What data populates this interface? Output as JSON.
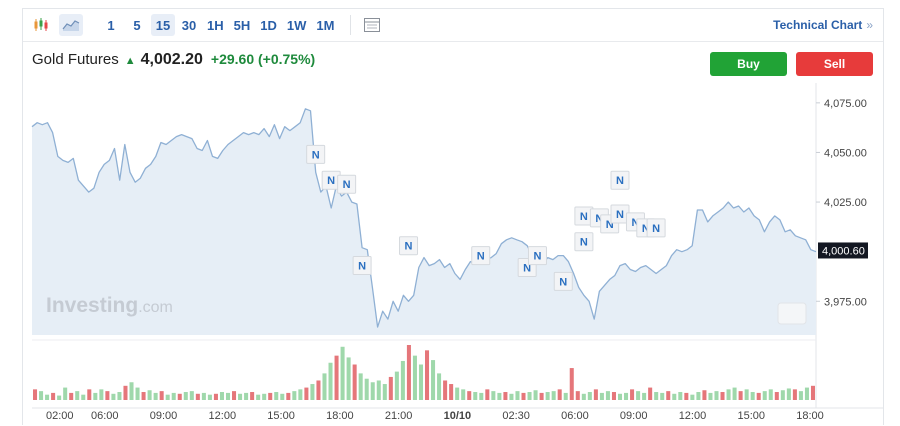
{
  "toolbar": {
    "icons": [
      {
        "name": "candlestick-chart-icon",
        "active": false
      },
      {
        "name": "area-chart-icon",
        "active": true
      }
    ],
    "timeframes": [
      "1",
      "5",
      "15",
      "30",
      "1H",
      "5H",
      "1D",
      "1W",
      "1M"
    ],
    "active_timeframe": "15",
    "table_icon": "table-icon",
    "technical_chart_label": "Technical Chart",
    "technical_chart_chevron": "»"
  },
  "instrument": {
    "name": "Gold Futures",
    "direction_icon": "up-arrow-icon",
    "price": "4,002.20",
    "change": "+29.60",
    "change_pct": "(+0.75%)",
    "up_color": "#1e8a3c"
  },
  "actions": {
    "buy_label": "Buy",
    "sell_label": "Sell",
    "buy_color": "#21a336",
    "sell_color": "#e73b3b"
  },
  "watermark": {
    "brand": "Investing",
    "suffix": ".com"
  },
  "chart_data": {
    "type": "area",
    "ylim": [
      3958,
      4085
    ],
    "y_ticks": [
      {
        "value": 4075,
        "label": "4,075.00"
      },
      {
        "value": 4050,
        "label": "4,050.00"
      },
      {
        "value": 4025,
        "label": "4,025.00"
      },
      {
        "value": 3975,
        "label": "3,975.00"
      }
    ],
    "last_price_label": "4,000.60",
    "last_price": 4000.6,
    "x_ticks": [
      "02:00",
      "06:00",
      "09:00",
      "12:00",
      "15:00",
      "18:00",
      "21:00",
      "10/10",
      "02:30",
      "06:00",
      "09:00",
      "12:00",
      "15:00",
      "18:00"
    ],
    "x_tick_bold_index": 7,
    "line_color": "#8fb0d4",
    "fill_color": "#e6eef6",
    "price_series": [
      4063,
      4065,
      4064,
      4065,
      4060,
      4048,
      4046,
      4045,
      4047,
      4036,
      4033,
      4030,
      4032,
      4040,
      4044,
      4046,
      4052,
      4036,
      4054,
      4040,
      4035,
      4037,
      4042,
      4044,
      4048,
      4055,
      4054,
      4056,
      4058,
      4059,
      4058,
      4057,
      4052,
      4051,
      4056,
      4048,
      4047,
      4051,
      4054,
      4056,
      4058,
      4060,
      4059,
      4060,
      4059,
      4062,
      4058,
      4064,
      4057,
      4063,
      4061,
      4063,
      4065,
      4072,
      4071,
      4040,
      4030,
      4033,
      4022,
      4033,
      4028,
      4030,
      4025,
      4024,
      4002,
      4001,
      3982,
      3962,
      3970,
      3966,
      3975,
      3970,
      3978,
      3975,
      3978,
      3992,
      3997,
      3993,
      3994,
      3996,
      3992,
      3994,
      3989,
      3986,
      3991,
      3995,
      3994,
      3995,
      3996,
      3997,
      3999,
      4004,
      4006,
      4007,
      4006,
      4005,
      4003,
      3998,
      3995,
      3994,
      3997,
      3996,
      3998,
      3998,
      3995,
      3989,
      3982,
      3978,
      3975,
      3966,
      3980,
      3983,
      3986,
      3988,
      3993,
      3994,
      3991,
      3990,
      3992,
      3993,
      3991,
      3989,
      3991,
      3993,
      3998,
      4001,
      4000,
      4001,
      4003,
      4021,
      4021,
      4015,
      4018,
      4020,
      4022,
      4025,
      4022,
      4023,
      4020,
      4022,
      4018,
      4016,
      4010,
      4015,
      4018,
      4016,
      4010,
      4011,
      4008,
      4007,
      4006,
      4001,
      4000
    ],
    "news_markers": [
      {
        "label": "N",
        "x_index": 55,
        "price": 4049
      },
      {
        "label": "N",
        "x_index": 58,
        "price": 4036
      },
      {
        "label": "N",
        "x_index": 61,
        "price": 4034
      },
      {
        "label": "N",
        "x_index": 64,
        "price": 3993
      },
      {
        "label": "N",
        "x_index": 73,
        "price": 4003
      },
      {
        "label": "N",
        "x_index": 87,
        "price": 3998
      },
      {
        "label": "N",
        "x_index": 96,
        "price": 3992
      },
      {
        "label": "N",
        "x_index": 98,
        "price": 3998
      },
      {
        "label": "N",
        "x_index": 103,
        "price": 3985
      },
      {
        "label": "N",
        "x_index": 107,
        "price": 4018
      },
      {
        "label": "N",
        "x_index": 107,
        "price": 4005
      },
      {
        "label": "N",
        "x_index": 110,
        "price": 4017
      },
      {
        "label": "N",
        "x_index": 112,
        "price": 4014
      },
      {
        "label": "N",
        "x_index": 114,
        "price": 4036
      },
      {
        "label": "N",
        "x_index": 114,
        "price": 4019
      },
      {
        "label": "N",
        "x_index": 117,
        "price": 4015
      },
      {
        "label": "N",
        "x_index": 119,
        "price": 4012
      },
      {
        "label": "N",
        "x_index": 121,
        "price": 4012
      }
    ],
    "volume": [
      12,
      10,
      6,
      8,
      5,
      14,
      8,
      10,
      6,
      12,
      8,
      12,
      10,
      7,
      9,
      16,
      20,
      14,
      9,
      11,
      8,
      10,
      6,
      8,
      7,
      9,
      10,
      7,
      8,
      6,
      7,
      9,
      8,
      10,
      7,
      8,
      9,
      6,
      7,
      8,
      9,
      7,
      8,
      10,
      12,
      14,
      18,
      22,
      30,
      42,
      50,
      60,
      48,
      40,
      30,
      24,
      20,
      22,
      18,
      26,
      32,
      44,
      62,
      50,
      40,
      56,
      45,
      30,
      22,
      18,
      14,
      12,
      10,
      9,
      8,
      12,
      10,
      8,
      9,
      7,
      10,
      8,
      9,
      11,
      8,
      9,
      10,
      12,
      8,
      36,
      10,
      7,
      9,
      12,
      8,
      10,
      9,
      7,
      8,
      12,
      10,
      8,
      14,
      9,
      8,
      10,
      7,
      9,
      8,
      6,
      9,
      11,
      8,
      10,
      9,
      12,
      14,
      10,
      12,
      9,
      8,
      10,
      12,
      9,
      11,
      13,
      12,
      10,
      14,
      16
    ],
    "volume_up_color": "#9fd8ab",
    "volume_down_color": "#e5767a"
  }
}
